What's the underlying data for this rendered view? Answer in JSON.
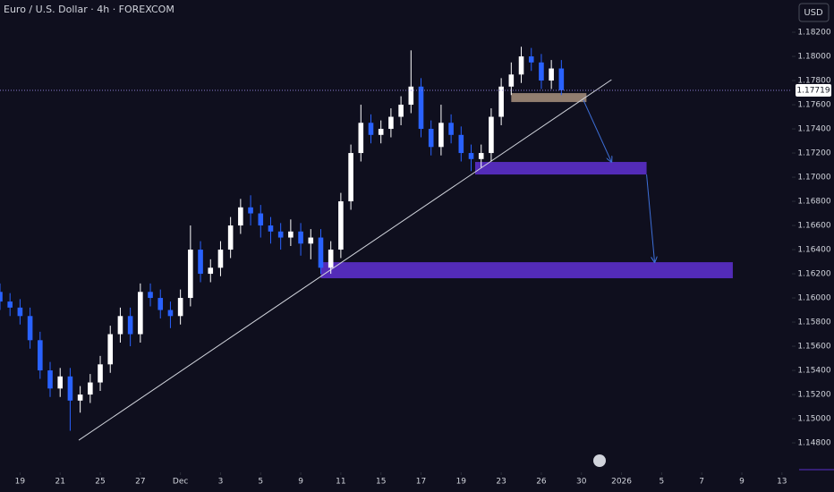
{
  "chart_data": {
    "type": "candlestick",
    "title": "Euro / U.S. Dollar · 4h · FOREXCOM",
    "currency": "USD",
    "up_color": "#ffffff",
    "down_color": "#2962ff",
    "x": [
      0,
      1,
      2,
      3,
      4,
      5,
      6,
      7,
      8,
      9,
      10,
      11,
      12,
      13,
      14,
      15,
      16,
      17,
      18,
      19,
      20,
      21,
      22,
      23,
      24,
      25,
      26,
      27,
      28,
      29,
      30,
      31,
      32,
      33,
      34,
      35,
      36,
      37,
      38,
      39,
      40,
      41,
      42,
      43,
      44,
      45,
      46,
      47,
      48,
      49,
      50,
      51,
      52,
      53,
      54,
      55,
      56
    ],
    "open": [
      1.1605,
      1.1597,
      1.1592,
      1.1585,
      1.1565,
      1.154,
      1.1525,
      1.1535,
      1.1515,
      1.152,
      1.153,
      1.1545,
      1.157,
      1.1585,
      1.157,
      1.1605,
      1.16,
      1.159,
      1.1585,
      1.16,
      1.164,
      1.162,
      1.1625,
      1.164,
      1.166,
      1.1675,
      1.167,
      1.166,
      1.1655,
      1.165,
      1.1655,
      1.1645,
      1.165,
      1.1625,
      1.164,
      1.168,
      1.172,
      1.1745,
      1.1735,
      1.174,
      1.175,
      1.176,
      1.1775,
      1.174,
      1.1725,
      1.1745,
      1.1735,
      1.172,
      1.1715,
      1.172,
      1.175,
      1.1775,
      1.1785,
      1.18,
      1.1795,
      1.178,
      1.179
    ],
    "high": [
      1.1612,
      1.1604,
      1.1599,
      1.1592,
      1.1572,
      1.1547,
      1.1542,
      1.1542,
      1.1527,
      1.1537,
      1.1552,
      1.1577,
      1.1592,
      1.1592,
      1.1612,
      1.1612,
      1.1607,
      1.1597,
      1.1607,
      1.166,
      1.1647,
      1.1632,
      1.1647,
      1.1667,
      1.1682,
      1.1685,
      1.1677,
      1.1667,
      1.1662,
      1.1665,
      1.1662,
      1.1657,
      1.1657,
      1.1647,
      1.1687,
      1.1727,
      1.176,
      1.1752,
      1.1747,
      1.1757,
      1.1767,
      1.1805,
      1.1782,
      1.1747,
      1.176,
      1.1752,
      1.1742,
      1.1727,
      1.1727,
      1.1757,
      1.1782,
      1.1795,
      1.1808,
      1.1807,
      1.1802,
      1.1797,
      1.1797
    ],
    "low": [
      1.159,
      1.1585,
      1.1578,
      1.1558,
      1.1533,
      1.1518,
      1.1518,
      1.149,
      1.1505,
      1.1513,
      1.1523,
      1.1538,
      1.1563,
      1.156,
      1.1563,
      1.1593,
      1.1583,
      1.1575,
      1.1578,
      1.1593,
      1.1613,
      1.1613,
      1.1618,
      1.1633,
      1.1653,
      1.166,
      1.165,
      1.1645,
      1.164,
      1.1643,
      1.1635,
      1.1632,
      1.162,
      1.162,
      1.1633,
      1.1673,
      1.1713,
      1.1728,
      1.1728,
      1.1733,
      1.1743,
      1.1753,
      1.1733,
      1.1718,
      1.1718,
      1.1728,
      1.1713,
      1.1705,
      1.1708,
      1.1713,
      1.1743,
      1.1768,
      1.1778,
      1.1788,
      1.1773,
      1.1773,
      1.1768
    ],
    "close": [
      1.1597,
      1.1592,
      1.1585,
      1.1565,
      1.154,
      1.1525,
      1.1535,
      1.1515,
      1.152,
      1.153,
      1.1545,
      1.157,
      1.1585,
      1.157,
      1.1605,
      1.16,
      1.159,
      1.1585,
      1.16,
      1.164,
      1.162,
      1.1625,
      1.164,
      1.166,
      1.1675,
      1.167,
      1.166,
      1.1655,
      1.165,
      1.1655,
      1.1645,
      1.165,
      1.1625,
      1.164,
      1.168,
      1.172,
      1.1745,
      1.1735,
      1.174,
      1.175,
      1.176,
      1.1775,
      1.174,
      1.1725,
      1.1745,
      1.1735,
      1.172,
      1.1715,
      1.172,
      1.175,
      1.1775,
      1.1785,
      1.18,
      1.1795,
      1.178,
      1.179,
      1.1772
    ],
    "last_price": {
      "value": 1.17719,
      "label": "1.17719"
    },
    "xlim": [
      0,
      79
    ],
    "ylim": [
      1.14556,
      1.18467
    ],
    "xticks": [
      {
        "value": 2,
        "label": "19"
      },
      {
        "value": 6,
        "label": "21"
      },
      {
        "value": 10,
        "label": "25"
      },
      {
        "value": 14,
        "label": "27"
      },
      {
        "value": 18,
        "label": "Dec"
      },
      {
        "value": 22,
        "label": "3"
      },
      {
        "value": 26,
        "label": "5"
      },
      {
        "value": 30,
        "label": "9"
      },
      {
        "value": 34,
        "label": "11"
      },
      {
        "value": 38,
        "label": "15"
      },
      {
        "value": 42,
        "label": "17"
      },
      {
        "value": 46,
        "label": "19"
      },
      {
        "value": 50,
        "label": "23"
      },
      {
        "value": 54,
        "label": "26"
      },
      {
        "value": 58,
        "label": "30"
      },
      {
        "value": 62,
        "label": "2026"
      },
      {
        "value": 66,
        "label": "5"
      },
      {
        "value": 70,
        "label": "7"
      },
      {
        "value": 74,
        "label": "9"
      },
      {
        "value": 78,
        "label": "13"
      }
    ],
    "yticks": [
      {
        "value": 1.148,
        "label": "1.14800"
      },
      {
        "value": 1.15,
        "label": "1.15000"
      },
      {
        "value": 1.152,
        "label": "1.15200"
      },
      {
        "value": 1.154,
        "label": "1.15400"
      },
      {
        "value": 1.156,
        "label": "1.15600"
      },
      {
        "value": 1.158,
        "label": "1.15800"
      },
      {
        "value": 1.16,
        "label": "1.16000"
      },
      {
        "value": 1.162,
        "label": "1.16200"
      },
      {
        "value": 1.164,
        "label": "1.16400"
      },
      {
        "value": 1.166,
        "label": "1.16600"
      },
      {
        "value": 1.168,
        "label": "1.16800"
      },
      {
        "value": 1.17,
        "label": "1.17000"
      },
      {
        "value": 1.172,
        "label": "1.17200"
      },
      {
        "value": 1.174,
        "label": "1.17400"
      },
      {
        "value": 1.176,
        "label": "1.17600"
      },
      {
        "value": 1.178,
        "label": "1.17800"
      },
      {
        "value": 1.18,
        "label": "1.18000"
      },
      {
        "value": 1.182,
        "label": "1.18200"
      }
    ],
    "trendline": {
      "x": [
        7.86,
        61.0
      ],
      "y": [
        1.14822,
        1.17807
      ],
      "color": "#d1d4dc"
    },
    "zones": [
      {
        "x": [
          51,
          58.5
        ],
        "y": [
          1.17622,
          1.17696
        ],
        "color": "#a08a78"
      },
      {
        "x": [
          47.4,
          64.5
        ],
        "y": [
          1.17022,
          1.17126
        ],
        "color": "#5b2fc9"
      },
      {
        "x": [
          32,
          73.1
        ],
        "y": [
          1.16163,
          1.16296
        ],
        "color": "#5b2fc9"
      }
    ],
    "arrows": [
      {
        "x": [
          58.2,
          61.0
        ],
        "y": [
          1.17637,
          1.17126
        ],
        "color": "#3d6fd8"
      },
      {
        "x": [
          64.5,
          65.3
        ],
        "y": [
          1.17022,
          1.16296
        ],
        "color": "#3d6fd8"
      }
    ]
  }
}
